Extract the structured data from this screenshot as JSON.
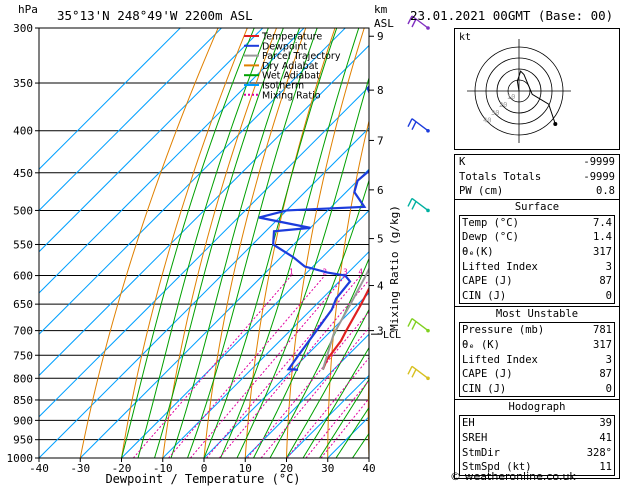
{
  "header": {
    "hpa_label": "hPa",
    "location": "35°13'N  248°49'W  2200m  ASL",
    "km_label": "km",
    "asl_label": "ASL",
    "datetime": "23.01.2021  00GMT  (Base: 00)"
  },
  "chart_data": {
    "type": "skew-t log-p",
    "xlabel": "Dewpoint / Temperature (°C)",
    "y2label": "Mixing Ratio (g/kg)",
    "xlim": [
      -40,
      40
    ],
    "plim": [
      300,
      1000
    ],
    "x_ticks": [
      -40,
      -30,
      -20,
      -10,
      0,
      10,
      20,
      30,
      40
    ],
    "pressure_levels": [
      300,
      350,
      400,
      450,
      500,
      550,
      600,
      650,
      700,
      750,
      800,
      850,
      900,
      950,
      1000
    ],
    "km_ticks": [
      {
        "label": "9",
        "p": 307
      },
      {
        "label": "8",
        "p": 357
      },
      {
        "label": "7",
        "p": 411
      },
      {
        "label": "6",
        "p": 472
      },
      {
        "label": "5",
        "p": 541
      },
      {
        "label": "4",
        "p": 617
      },
      {
        "label": "3",
        "p": 700
      }
    ],
    "lcl_label": "LCL",
    "lcl_pressure": 707,
    "mixing_ratio_labels": [
      "1",
      "2",
      "3",
      "4",
      "5",
      "8",
      "10",
      "15",
      "20",
      "25"
    ],
    "legend": [
      {
        "label": "Temperature",
        "color": "#e02020"
      },
      {
        "label": "Dewpoint",
        "color": "#1c3cdc"
      },
      {
        "label": "Parcel Trajectory",
        "color": "#999999"
      },
      {
        "label": "Dry Adiabat",
        "color": "#e08000"
      },
      {
        "label": "Wet Adiabat",
        "color": "#00a000"
      },
      {
        "label": "Isotherm",
        "color": "#00a0ff"
      },
      {
        "label": "Mixing Ratio",
        "color": "#e000a0"
      }
    ],
    "series": [
      {
        "name": "Temperature",
        "color": "#e02020",
        "points": [
          [
            781,
            7.4
          ],
          [
            760,
            6.0
          ],
          [
            720,
            4.8
          ],
          [
            700,
            3.6
          ],
          [
            650,
            0.8
          ],
          [
            600,
            -2.6
          ],
          [
            560,
            -5.4
          ],
          [
            520,
            -8.6
          ],
          [
            500,
            -10.2
          ],
          [
            470,
            -12.6
          ],
          [
            440,
            -15.8
          ],
          [
            420,
            -18.6
          ],
          [
            400,
            -21.2
          ],
          [
            380,
            -23.4
          ],
          [
            360,
            -25.6
          ],
          [
            340,
            -29.0
          ],
          [
            320,
            -32.6
          ],
          [
            300,
            -35.8
          ]
        ]
      },
      {
        "name": "Dewpoint",
        "color": "#1c3cdc",
        "points": [
          [
            781,
            1.4
          ],
          [
            780,
            -1.0
          ],
          [
            750,
            -2.0
          ],
          [
            700,
            -3.6
          ],
          [
            660,
            -5.0
          ],
          [
            640,
            -6.6
          ],
          [
            610,
            -7.4
          ],
          [
            600,
            -10.0
          ],
          [
            595,
            -15.0
          ],
          [
            585,
            -22.0
          ],
          [
            570,
            -27.0
          ],
          [
            550,
            -35.0
          ],
          [
            530,
            -38.0
          ],
          [
            525,
            -30.0
          ],
          [
            510,
            -45.0
          ],
          [
            500,
            -40.0
          ],
          [
            495,
            -22.0
          ],
          [
            475,
            -28.0
          ],
          [
            460,
            -30.0
          ],
          [
            430,
            -29.0
          ],
          [
            410,
            -32.0
          ],
          [
            395,
            -38.0
          ],
          [
            370,
            -45.0
          ],
          [
            355,
            -50.0
          ],
          [
            340,
            -50.0
          ],
          [
            320,
            -51.0
          ],
          [
            300,
            -55.0
          ]
        ]
      },
      {
        "name": "Parcel Trajectory",
        "color": "#999999",
        "points": [
          [
            781,
            7.4
          ],
          [
            707,
            1.4
          ],
          [
            650,
            -1.8
          ],
          [
            600,
            -5.0
          ],
          [
            550,
            -8.8
          ],
          [
            500,
            -13.4
          ],
          [
            450,
            -19.0
          ],
          [
            400,
            -25.6
          ],
          [
            350,
            -33.8
          ],
          [
            300,
            -43.6
          ]
        ]
      }
    ]
  },
  "hodograph": {
    "unit_label": "kt",
    "ring_labels": [
      "10",
      "20",
      "30",
      "40"
    ],
    "u": [
      0.0,
      -0.5,
      0.5,
      1.5,
      4.0,
      9.0,
      11.0
    ],
    "v": [
      0.0,
      3.0,
      6.0,
      5.0,
      -1.0,
      -4.0,
      -10.0
    ]
  },
  "indices": {
    "rows": [
      {
        "label": "K",
        "value": "-9999"
      },
      {
        "label": "Totals Totals",
        "value": "-9999"
      },
      {
        "label": "PW (cm)",
        "value": "0.8"
      }
    ]
  },
  "surface": {
    "title": "Surface",
    "rows": [
      {
        "label": "Temp (°C)",
        "value": "7.4"
      },
      {
        "label": "Dewp (°C)",
        "value": "1.4"
      },
      {
        "label": "θₑ(K)",
        "value": "317"
      },
      {
        "label": "Lifted Index",
        "value": "3"
      },
      {
        "label": "CAPE (J)",
        "value": "87"
      },
      {
        "label": "CIN (J)",
        "value": "0"
      }
    ]
  },
  "most_unstable": {
    "title": "Most Unstable",
    "rows": [
      {
        "label": "Pressure (mb)",
        "value": "781"
      },
      {
        "label": "θₑ (K)",
        "value": "317"
      },
      {
        "label": "Lifted Index",
        "value": "3"
      },
      {
        "label": "CAPE (J)",
        "value": "87"
      },
      {
        "label": "CIN (J)",
        "value": "0"
      }
    ]
  },
  "hodograph_stats": {
    "title": "Hodograph",
    "rows": [
      {
        "label": "EH",
        "value": "39"
      },
      {
        "label": "SREH",
        "value": "41"
      },
      {
        "label": "StmDir",
        "value": "328°"
      },
      {
        "label": "StmSpd (kt)",
        "value": "11"
      }
    ]
  },
  "copyright": "© weatheronline.co.uk",
  "wind_barbs": [
    {
      "p": 300,
      "color": "#8030c0"
    },
    {
      "p": 400,
      "color": "#1c3cdc"
    },
    {
      "p": 500,
      "color": "#00b0a0"
    },
    {
      "p": 700,
      "color": "#80d020"
    },
    {
      "p": 800,
      "color": "#d8c020"
    }
  ]
}
